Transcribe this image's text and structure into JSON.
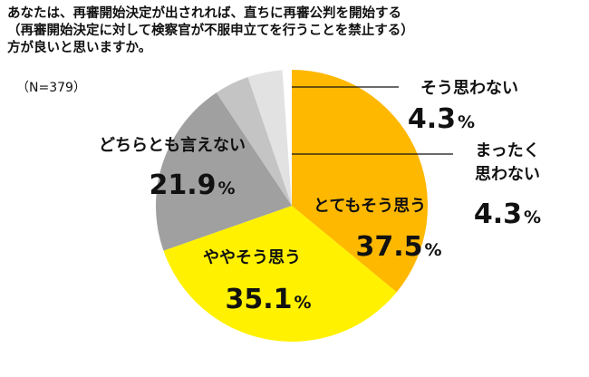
{
  "question": {
    "lines": [
      "あなたは、再審開始決定が出されれば、直ちに再審公判を開始する",
      "（再審開始決定に対して検察官が不服申立てを行うことを禁止する）",
      "方が良いと思いますか。"
    ]
  },
  "sample": "（N=379）",
  "chart_data": {
    "type": "pie",
    "unit": "%",
    "slices": [
      {
        "label": "とてもそう思う",
        "value": 37.5,
        "color": "#FFB800"
      },
      {
        "label": "ややそう思う",
        "value": 35.1,
        "color": "#FFF100"
      },
      {
        "label": "どちらとも言えない",
        "value": 21.9,
        "color": "#A0A0A0"
      },
      {
        "label": "そう思わない",
        "value": 4.3,
        "color": "#C4C4C4"
      },
      {
        "label": "まったく\n思わない",
        "value": 4.3,
        "color": "#E2E2E2"
      }
    ]
  }
}
